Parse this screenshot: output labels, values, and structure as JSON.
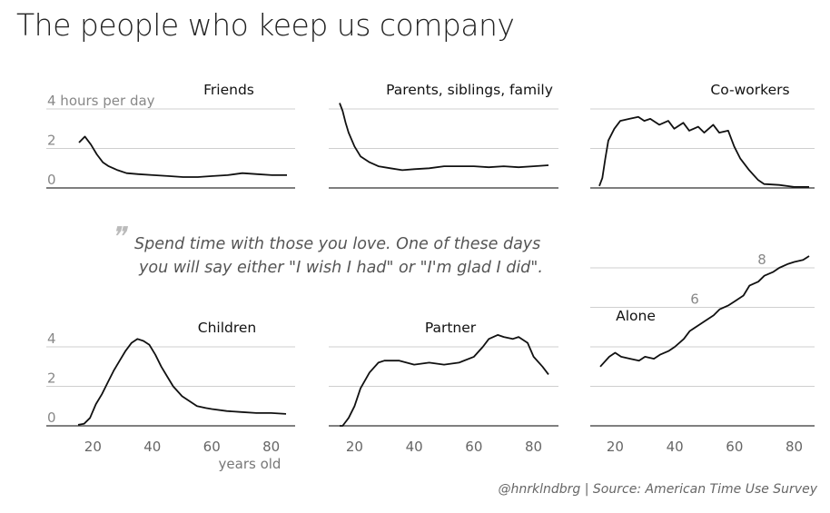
{
  "title": "The people who keep us company",
  "quote": {
    "line1": "Spend time with those you love. One of these days",
    "line2": "you will say either \"I wish I had\" or \"I'm glad I did\"."
  },
  "credit": "@hnrklndbrg | Source: American Time Use Survey",
  "chart_data": [
    {
      "type": "line",
      "title": "Friends",
      "ylabel": "4 hours per day",
      "xlim": [
        15,
        85
      ],
      "ylim": [
        0,
        4
      ],
      "yticks": [
        0,
        2,
        4
      ],
      "ytick_labels": [
        "0",
        "2",
        "4 hours per day"
      ],
      "x": [
        15,
        17,
        19,
        21,
        23,
        25,
        28,
        31,
        35,
        40,
        45,
        50,
        55,
        60,
        65,
        70,
        75,
        80,
        85
      ],
      "y": [
        2.3,
        2.6,
        2.2,
        1.7,
        1.3,
        1.1,
        0.9,
        0.75,
        0.7,
        0.65,
        0.6,
        0.55,
        0.55,
        0.6,
        0.65,
        0.75,
        0.7,
        0.65,
        0.65
      ]
    },
    {
      "type": "line",
      "title": "Parents, siblings, family",
      "xlim": [
        15,
        85
      ],
      "ylim": [
        0,
        4
      ],
      "yticks": [
        0,
        2,
        4
      ],
      "x": [
        15,
        16,
        17,
        18,
        20,
        22,
        25,
        28,
        32,
        36,
        40,
        45,
        50,
        55,
        60,
        65,
        70,
        75,
        80,
        85
      ],
      "y": [
        4.3,
        3.9,
        3.3,
        2.8,
        2.1,
        1.6,
        1.3,
        1.1,
        1.0,
        0.9,
        0.95,
        1.0,
        1.1,
        1.1,
        1.1,
        1.05,
        1.1,
        1.05,
        1.1,
        1.15
      ]
    },
    {
      "type": "line",
      "title": "Co-workers",
      "xlim": [
        15,
        85
      ],
      "ylim": [
        0,
        4
      ],
      "yticks": [
        0,
        2,
        4
      ],
      "x": [
        15,
        16,
        17,
        18,
        20,
        22,
        25,
        28,
        30,
        32,
        35,
        38,
        40,
        43,
        45,
        48,
        50,
        53,
        55,
        58,
        60,
        62,
        65,
        68,
        70,
        75,
        80,
        85
      ],
      "y": [
        0.1,
        0.5,
        1.5,
        2.4,
        3.0,
        3.4,
        3.5,
        3.6,
        3.4,
        3.5,
        3.2,
        3.4,
        3.0,
        3.3,
        2.9,
        3.1,
        2.8,
        3.2,
        2.8,
        2.9,
        2.1,
        1.5,
        0.9,
        0.4,
        0.2,
        0.15,
        0.05,
        0.05
      ]
    },
    {
      "type": "line",
      "title": "Children",
      "xlim": [
        15,
        85
      ],
      "ylim": [
        0,
        4
      ],
      "yticks": [
        0,
        2,
        4
      ],
      "ytick_labels": [
        "0",
        "2",
        "4"
      ],
      "xticks": [
        20,
        40,
        60,
        80
      ],
      "xtick_labels": [
        "20",
        "40",
        "60",
        "80"
      ],
      "xlabel": "years old",
      "x": [
        15,
        17,
        19,
        21,
        23,
        25,
        27,
        29,
        31,
        33,
        35,
        37,
        39,
        41,
        43,
        45,
        47,
        50,
        53,
        55,
        58,
        60,
        65,
        70,
        75,
        80,
        85
      ],
      "y": [
        0.05,
        0.1,
        0.4,
        1.1,
        1.6,
        2.2,
        2.8,
        3.3,
        3.8,
        4.2,
        4.4,
        4.3,
        4.1,
        3.6,
        3.0,
        2.5,
        2.0,
        1.5,
        1.2,
        1.0,
        0.9,
        0.85,
        0.75,
        0.7,
        0.65,
        0.65,
        0.6
      ]
    },
    {
      "type": "line",
      "title": "Partner",
      "xlim": [
        15,
        85
      ],
      "ylim": [
        0,
        4
      ],
      "yticks": [
        0,
        2,
        4
      ],
      "xticks": [
        20,
        40,
        60,
        80
      ],
      "xtick_labels": [
        "20",
        "40",
        "60",
        "80"
      ],
      "x": [
        15,
        16,
        18,
        20,
        22,
        25,
        28,
        30,
        35,
        40,
        45,
        50,
        55,
        60,
        63,
        65,
        68,
        70,
        73,
        75,
        78,
        80,
        83,
        85
      ],
      "y": [
        0.0,
        0.0,
        0.4,
        1.0,
        1.9,
        2.7,
        3.2,
        3.3,
        3.3,
        3.1,
        3.2,
        3.1,
        3.2,
        3.5,
        4.0,
        4.4,
        4.6,
        4.5,
        4.4,
        4.5,
        4.2,
        3.5,
        3.0,
        2.6
      ]
    },
    {
      "type": "line",
      "title": "Alone",
      "xlim": [
        15,
        85
      ],
      "ylim": [
        0,
        8
      ],
      "yticks": [
        0,
        2,
        4,
        6,
        8
      ],
      "ytick_labels": [
        "",
        "",
        "",
        "6",
        "8"
      ],
      "xticks": [
        20,
        40,
        60,
        80
      ],
      "xtick_labels": [
        "20",
        "40",
        "60",
        "80"
      ],
      "x": [
        15,
        18,
        20,
        22,
        25,
        28,
        30,
        33,
        35,
        38,
        40,
        43,
        45,
        48,
        50,
        53,
        55,
        58,
        60,
        63,
        65,
        68,
        70,
        73,
        75,
        78,
        80,
        83,
        85
      ],
      "y": [
        3.0,
        3.5,
        3.7,
        3.5,
        3.4,
        3.3,
        3.5,
        3.4,
        3.6,
        3.8,
        4.0,
        4.4,
        4.8,
        5.1,
        5.3,
        5.6,
        5.9,
        6.1,
        6.3,
        6.6,
        7.1,
        7.3,
        7.6,
        7.8,
        8.0,
        8.2,
        8.3,
        8.4,
        8.6
      ]
    }
  ]
}
